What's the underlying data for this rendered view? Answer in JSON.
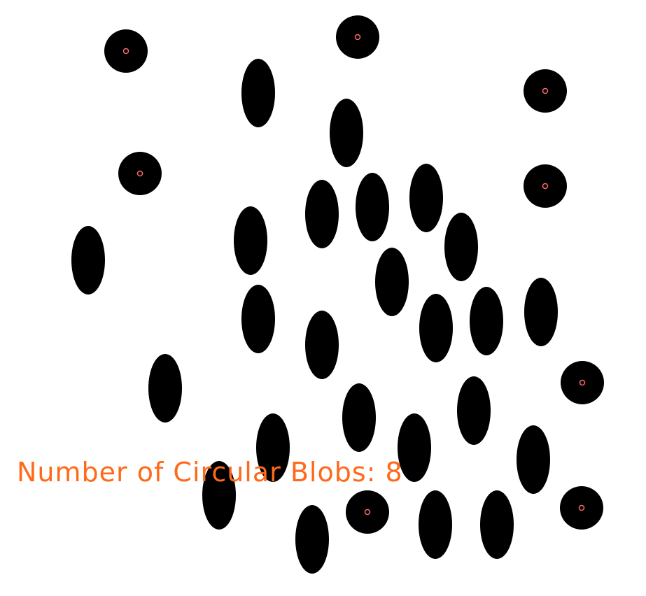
{
  "image": {
    "background": "#ffffff",
    "blob_color": "#000000",
    "annotation_color": "#ff6a1a",
    "marker_color": "#ff6a6a"
  },
  "result": {
    "label": "Number of Circular Blobs: 8"
  }
}
